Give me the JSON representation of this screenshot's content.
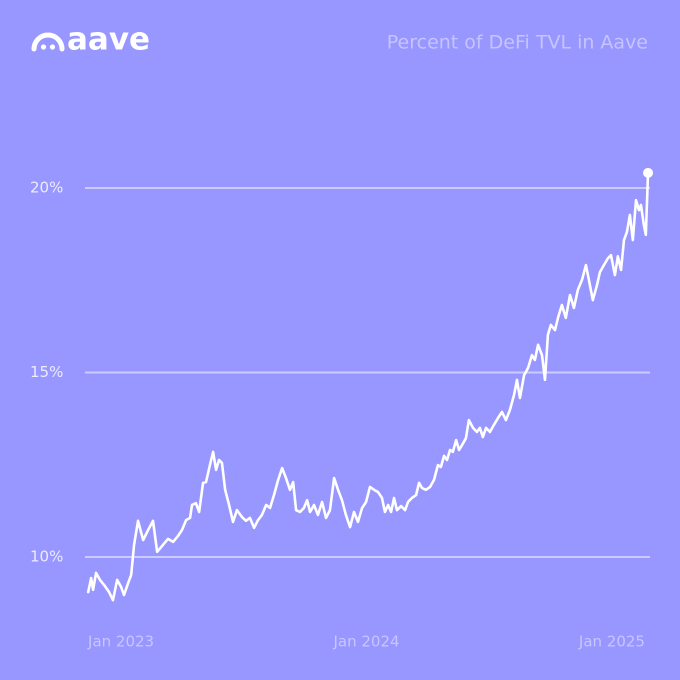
{
  "logo": "aave",
  "chart_data": {
    "type": "line",
    "title": "Percent of DeFi TVL in Aave",
    "color": "#ffffff",
    "grid": true,
    "xlim": [
      2022.853,
      2025.155
    ],
    "xticks": [
      {
        "value": 2023,
        "label": "Jan 2023"
      },
      {
        "value": 2024,
        "label": "Jan 2024"
      },
      {
        "value": 2025,
        "label": "Jan 2025"
      }
    ],
    "ylim": [
      8.5,
      21
    ],
    "yticks": [
      {
        "value": 10,
        "label": "10%"
      },
      {
        "value": 15,
        "label": "15%"
      },
      {
        "value": 20,
        "label": "20%"
      }
    ],
    "x": [
      2022.866,
      2022.878,
      2022.886,
      2022.898,
      2022.914,
      2022.931,
      2022.951,
      2022.967,
      2022.984,
      2023.0,
      2023.012,
      2023.029,
      2023.041,
      2023.053,
      2023.069,
      2023.09,
      2023.11,
      2023.13,
      2023.147,
      2023.171,
      2023.191,
      2023.212,
      2023.232,
      2023.248,
      2023.265,
      2023.281,
      2023.289,
      2023.305,
      2023.318,
      2023.334,
      2023.346,
      2023.363,
      2023.375,
      2023.387,
      2023.399,
      2023.411,
      2023.424,
      2023.44,
      2023.456,
      2023.472,
      2023.493,
      2023.509,
      2023.525,
      2023.542,
      2023.558,
      2023.574,
      2023.591,
      2023.607,
      2023.623,
      2023.64,
      2023.656,
      2023.672,
      2023.688,
      2023.701,
      2023.713,
      2023.729,
      2023.745,
      2023.758,
      2023.77,
      2023.786,
      2023.802,
      2023.819,
      2023.835,
      2023.851,
      2023.868,
      2023.884,
      2023.9,
      2023.916,
      2023.933,
      2023.949,
      2023.965,
      2023.982,
      2023.998,
      2024.014,
      2024.031,
      2024.047,
      2024.063,
      2024.075,
      2024.088,
      2024.1,
      2024.112,
      2024.124,
      2024.141,
      2024.157,
      2024.169,
      2024.185,
      2024.202,
      2024.214,
      2024.226,
      2024.242,
      2024.259,
      2024.275,
      2024.291,
      2024.303,
      2024.316,
      2024.328,
      2024.34,
      2024.352,
      2024.365,
      2024.377,
      2024.389,
      2024.405,
      2024.417,
      2024.434,
      2024.45,
      2024.462,
      2024.474,
      2024.487,
      2024.503,
      2024.519,
      2024.536,
      2024.552,
      2024.568,
      2024.584,
      2024.601,
      2024.613,
      2024.625,
      2024.642,
      2024.658,
      2024.674,
      2024.686,
      2024.699,
      2024.715,
      2024.727,
      2024.739,
      2024.751,
      2024.768,
      2024.78,
      2024.796,
      2024.812,
      2024.829,
      2024.845,
      2024.861,
      2024.878,
      2024.894,
      2024.906,
      2024.922,
      2024.939,
      2024.951,
      2024.967,
      2024.984,
      2024.996,
      2025.012,
      2025.024,
      2025.037,
      2025.049,
      2025.061,
      2025.073,
      2025.085,
      2025.098,
      2025.11,
      2025.118,
      2025.13,
      2025.138,
      2025.147
    ],
    "values": [
      9.05,
      9.43,
      9.11,
      9.57,
      9.38,
      9.24,
      9.05,
      8.83,
      9.38,
      9.19,
      8.97,
      9.3,
      9.51,
      10.33,
      10.98,
      10.46,
      10.73,
      10.98,
      10.14,
      10.33,
      10.49,
      10.41,
      10.57,
      10.73,
      11.0,
      11.06,
      11.41,
      11.46,
      11.22,
      12.01,
      12.03,
      12.52,
      12.85,
      12.36,
      12.63,
      12.55,
      11.82,
      11.41,
      10.95,
      11.27,
      11.08,
      10.98,
      11.06,
      10.79,
      11.0,
      11.14,
      11.41,
      11.33,
      11.68,
      12.09,
      12.41,
      12.14,
      11.82,
      12.03,
      11.27,
      11.22,
      11.33,
      11.54,
      11.22,
      11.41,
      11.14,
      11.49,
      11.06,
      11.27,
      12.14,
      11.82,
      11.54,
      11.14,
      10.81,
      11.22,
      10.95,
      11.33,
      11.49,
      11.9,
      11.82,
      11.76,
      11.6,
      11.22,
      11.41,
      11.22,
      11.6,
      11.27,
      11.38,
      11.27,
      11.49,
      11.6,
      11.68,
      12.01,
      11.87,
      11.82,
      11.9,
      12.09,
      12.49,
      12.44,
      12.74,
      12.63,
      12.9,
      12.85,
      13.17,
      12.9,
      13.03,
      13.22,
      13.71,
      13.5,
      13.39,
      13.5,
      13.25,
      13.5,
      13.39,
      13.58,
      13.77,
      13.93,
      13.71,
      13.98,
      14.39,
      14.8,
      14.31,
      14.93,
      15.12,
      15.47,
      15.34,
      15.75,
      15.47,
      14.8,
      16.02,
      16.29,
      16.15,
      16.48,
      16.83,
      16.48,
      17.1,
      16.75,
      17.24,
      17.51,
      17.91,
      17.51,
      16.96,
      17.37,
      17.72,
      17.91,
      18.1,
      18.18,
      17.64,
      18.15,
      17.78,
      18.59,
      18.81,
      19.27,
      18.59,
      19.67,
      19.4,
      19.54,
      19.0,
      18.73,
      20.41
    ]
  }
}
